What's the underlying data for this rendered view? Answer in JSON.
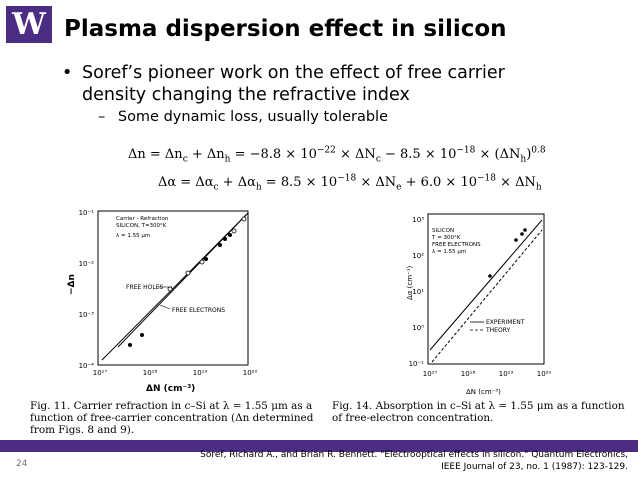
{
  "logo": {
    "letter": "W"
  },
  "title": "Plasma dispersion effect in silicon",
  "bullets": {
    "main_marker": "•",
    "main": "Soref’s pioneer work on the effect of free carrier density changing the refractive index",
    "sub_marker": "–",
    "sub": "Some dynamic loss, usually tolerable"
  },
  "equations": {
    "eq1": "Δn = Δn_c + Δn_h = −8.8 × 10^−22 × ΔN_c − 8.5 × 10^−18 × (ΔN_h)^0.8",
    "eq2": "Δα = Δα_c + Δα_h = 8.5 × 10^−18 × ΔN_e + 6.0 × 10^−18 × ΔN_h"
  },
  "figure11": {
    "legend_lines": [
      "Carrier - Refraction",
      "SILICON, T=300°K",
      "λ = 1.55 μm"
    ],
    "y_axis_label": "−Δn",
    "x_axis_label": "ΔN (cm⁻³)",
    "y_ticks": [
      "10⁻¹",
      "10⁻²",
      "10⁻³",
      "10⁻⁴"
    ],
    "x_ticks": [
      "10¹⁷",
      "10¹⁸",
      "10¹⁹",
      "10²⁰"
    ],
    "curve_labels": [
      "FREE HOLES",
      "FREE ELECTRONS"
    ],
    "caption": "Fig. 11.  Carrier refraction in c–Si at λ = 1.55 μm as a function of free-carrier concentration (Δn determined from Figs. 8 and 9)."
  },
  "figure14": {
    "legend_lines": [
      "SILICON",
      "T = 300°K",
      "FREE ELECTRONS",
      "λ = 1.55 μm"
    ],
    "y_axis_label": "Δα (cm⁻¹)",
    "x_axis_label": "ΔN (cm⁻³)",
    "y_ticks": [
      "10³",
      "10²",
      "10¹",
      "10⁰",
      "10⁻¹"
    ],
    "x_ticks": [
      "10¹⁷",
      "10¹⁸",
      "10¹⁹",
      "10²⁰"
    ],
    "line_legend": [
      "EXPERIMENT",
      "THEORY"
    ],
    "caption": "Fig. 14.  Absorption in c–Si at λ = 1.55 μm as a function of free-electron concentration."
  },
  "footer": {
    "page_number": "24",
    "citation": "Soref, Richard A., and Brian R. Bennett. \"Electrooptical effects in silicon.\" Quantum Electronics, IEEE Journal of 23, no. 1 (1987): 123-129."
  },
  "colors": {
    "brand_purple": "#4b2e83"
  }
}
